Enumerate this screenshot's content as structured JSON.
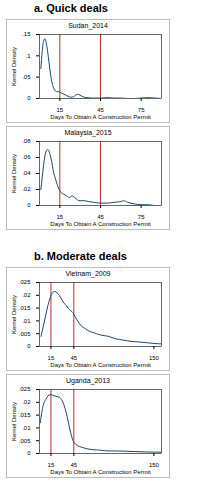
{
  "headings": [
    "a. Quick deals",
    "b. Moderate deals"
  ],
  "chart_data": [
    {
      "type": "line",
      "title": "Sudan_2014",
      "x_label": "Days To Obtain A Construction Permit",
      "y_label": "Kernel Density",
      "color": "#1a476f",
      "x": [
        1,
        2,
        3,
        4,
        5,
        6,
        7,
        8,
        9,
        10,
        11,
        12,
        13,
        14,
        15,
        16,
        18,
        20,
        22,
        24,
        26,
        28,
        30,
        32,
        35,
        40,
        45,
        50,
        55,
        60,
        65,
        70,
        75,
        80,
        85,
        90
      ],
      "values": [
        0.07,
        0.11,
        0.135,
        0.14,
        0.13,
        0.11,
        0.085,
        0.06,
        0.04,
        0.028,
        0.02,
        0.017,
        0.016,
        0.016,
        0.015,
        0.013,
        0.01,
        0.007,
        0.004,
        0.003,
        0.006,
        0.01,
        0.008,
        0.004,
        0.002,
        0.001,
        0.001,
        0.002,
        0.001,
        0.001,
        0,
        0,
        0.001,
        0.002,
        0.001,
        0
      ],
      "xlim": [
        0,
        90
      ],
      "xticks": [
        15,
        45,
        75
      ],
      "ylim": [
        0,
        0.15
      ],
      "yticks": [
        0,
        {
          "value": 0.05,
          "label": ".05"
        },
        {
          "value": 0.1,
          "label": ".1"
        },
        {
          "value": 0.15,
          "label": ".15"
        }
      ],
      "vlines": [
        15,
        45
      ]
    },
    {
      "type": "line",
      "title": "Malaysia_2015",
      "x_label": "Days To Obtain A Construction Permit",
      "y_label": "Kernel Density",
      "color": "#1a476f",
      "x": [
        1,
        2,
        3,
        4,
        5,
        6,
        7,
        8,
        9,
        10,
        12,
        14,
        16,
        18,
        20,
        22,
        24,
        26,
        28,
        30,
        33,
        36,
        40,
        45,
        50,
        55,
        60,
        62,
        65,
        70,
        75,
        80,
        85,
        90
      ],
      "values": [
        0.02,
        0.035,
        0.05,
        0.062,
        0.068,
        0.07,
        0.068,
        0.062,
        0.055,
        0.045,
        0.032,
        0.022,
        0.016,
        0.014,
        0.012,
        0.01,
        0.012,
        0.01,
        0.007,
        0.006,
        0.006,
        0.005,
        0.004,
        0.003,
        0.003,
        0.004,
        0.005,
        0.006,
        0.004,
        0.002,
        0.001,
        0.001,
        0,
        0
      ],
      "xlim": [
        0,
        90
      ],
      "xticks": [
        15,
        45,
        75
      ],
      "ylim": [
        0,
        0.08
      ],
      "yticks": [
        0,
        {
          "value": 0.02,
          "label": ".02"
        },
        {
          "value": 0.04,
          "label": ".04"
        },
        {
          "value": 0.06,
          "label": ".06"
        },
        {
          "value": 0.08,
          "label": ".08"
        }
      ],
      "vlines": [
        15,
        45
      ]
    },
    {
      "type": "line",
      "title": "Vietnam_2009",
      "x_label": "Days To Obtain A Construction Permit",
      "y_label": "Kernel Density",
      "color": "#1a476f",
      "x": [
        2,
        5,
        8,
        11,
        14,
        17,
        20,
        23,
        26,
        29,
        32,
        35,
        38,
        41,
        44,
        47,
        50,
        55,
        60,
        65,
        70,
        80,
        90,
        100,
        110,
        120,
        130,
        140,
        150,
        160
      ],
      "values": [
        0.004,
        0.008,
        0.012,
        0.016,
        0.019,
        0.021,
        0.0215,
        0.021,
        0.02,
        0.0185,
        0.017,
        0.016,
        0.0148,
        0.014,
        0.0132,
        0.0115,
        0.01,
        0.008,
        0.007,
        0.006,
        0.0055,
        0.0045,
        0.004,
        0.003,
        0.0025,
        0.002,
        0.0018,
        0.0015,
        0.0012,
        0.001
      ],
      "xlim": [
        0,
        160
      ],
      "xticks": [
        15,
        45,
        150
      ],
      "ylim": [
        0,
        0.025
      ],
      "yticks": [
        0,
        {
          "value": 0.005,
          "label": ".005"
        },
        {
          "value": 0.01,
          "label": ".01"
        },
        {
          "value": 0.015,
          "label": ".015"
        },
        {
          "value": 0.02,
          "label": ".02"
        },
        {
          "value": 0.025,
          "label": ".025"
        }
      ],
      "vlines": [
        15,
        45
      ]
    },
    {
      "type": "line",
      "title": "Uganda_2013",
      "x_label": "Days To Obtain A Construction Permit",
      "y_label": "Kernel Density",
      "color": "#1a476f",
      "x": [
        1,
        3,
        5,
        8,
        11,
        14,
        17,
        20,
        23,
        26,
        29,
        32,
        35,
        38,
        41,
        44,
        46,
        48,
        50,
        55,
        60,
        70,
        80,
        90,
        100,
        120,
        140,
        160
      ],
      "values": [
        0.012,
        0.016,
        0.019,
        0.021,
        0.0225,
        0.023,
        0.0228,
        0.0225,
        0.0222,
        0.022,
        0.021,
        0.019,
        0.016,
        0.012,
        0.008,
        0.005,
        0.004,
        0.0035,
        0.003,
        0.0025,
        0.002,
        0.0015,
        0.0013,
        0.001,
        0.001,
        0.0008,
        0.0006,
        0.0005
      ],
      "xlim": [
        0,
        160
      ],
      "xticks": [
        15,
        45,
        150
      ],
      "ylim": [
        0,
        0.025
      ],
      "yticks": [
        0,
        {
          "value": 0.005,
          "label": ".005"
        },
        {
          "value": 0.01,
          "label": ".01"
        },
        {
          "value": 0.015,
          "label": ".015"
        },
        {
          "value": 0.02,
          "label": ".02"
        },
        {
          "value": 0.025,
          "label": ".025"
        }
      ],
      "vlines": [
        15,
        45
      ]
    }
  ]
}
